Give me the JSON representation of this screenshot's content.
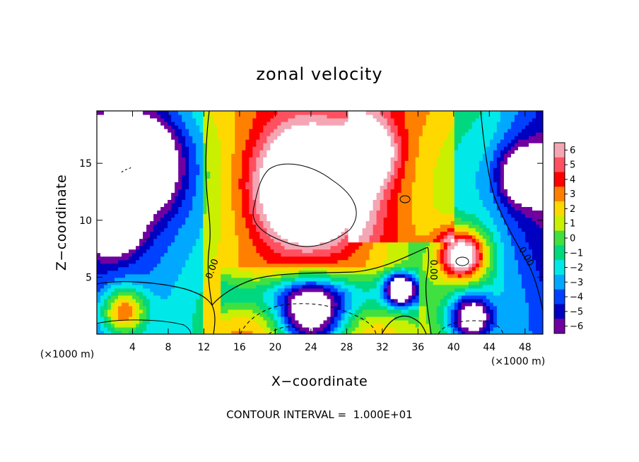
{
  "chart_data": {
    "type": "heatmap",
    "title": "zonal velocity",
    "xlabel": "X−coordinate",
    "ylabel": "Z−coordinate",
    "x_units": "(×1000 m)",
    "y_units": "(×1000 m)",
    "xlim": [
      0,
      50
    ],
    "ylim": [
      0,
      19.6
    ],
    "x_ticks": [
      4,
      8,
      12,
      16,
      20,
      24,
      28,
      32,
      36,
      40,
      44,
      48
    ],
    "x_tick_labels": [
      "4",
      "8",
      "12",
      "16",
      "20",
      "24",
      "28",
      "32",
      "36",
      "40",
      "44",
      "48"
    ],
    "y_ticks": [
      5,
      10,
      15
    ],
    "y_tick_labels": [
      "5",
      "10",
      "15"
    ],
    "colorbar": {
      "min": -6,
      "max": 6,
      "ticks": [
        6,
        5,
        4,
        3,
        2,
        1,
        0,
        -1,
        -2,
        -3,
        -4,
        -5,
        -6
      ],
      "tick_labels": [
        "6",
        "5",
        "4",
        "3",
        "2",
        "1",
        "0",
        "−1",
        "−2",
        "−3",
        "−4",
        "−5",
        "−6"
      ],
      "colors": [
        "#f4a6b4",
        "#ff5060",
        "#ff0000",
        "#ff8000",
        "#ffd800",
        "#c8f000",
        "#40e040",
        "#00d880",
        "#00e8e8",
        "#00a8ff",
        "#0040ff",
        "#0000c0",
        "#7000a0"
      ]
    },
    "field": {
      "description_of_structure": "saturated blobs shown white",
      "features": [
        {
          "x": 4,
          "z": 15,
          "u": -12,
          "r": 4.5
        },
        {
          "x": 2,
          "z": 9.5,
          "u": -9,
          "r": 2.5
        },
        {
          "x": 24,
          "z": 13,
          "u": 12,
          "r": 6
        },
        {
          "x": 30,
          "z": 16,
          "u": 8,
          "r": 3
        },
        {
          "x": 41,
          "z": 7,
          "u": 10,
          "r": 2.6
        },
        {
          "x": 24,
          "z": 1.5,
          "u": -11,
          "r": 4
        },
        {
          "x": 34,
          "z": 4,
          "u": -9,
          "r": 1.6
        },
        {
          "x": 42,
          "z": 1.5,
          "u": -8,
          "r": 2.5
        },
        {
          "x": 3,
          "z": 2,
          "u": 7,
          "r": 2.5
        },
        {
          "x": 48,
          "z": 14,
          "u": -6,
          "r": 3
        }
      ]
    },
    "contour_labels": [
      "0.00",
      "0.00",
      "0.00"
    ],
    "contour_interval_text": "CONTOUR INTERVAL =  1.000E+01"
  }
}
